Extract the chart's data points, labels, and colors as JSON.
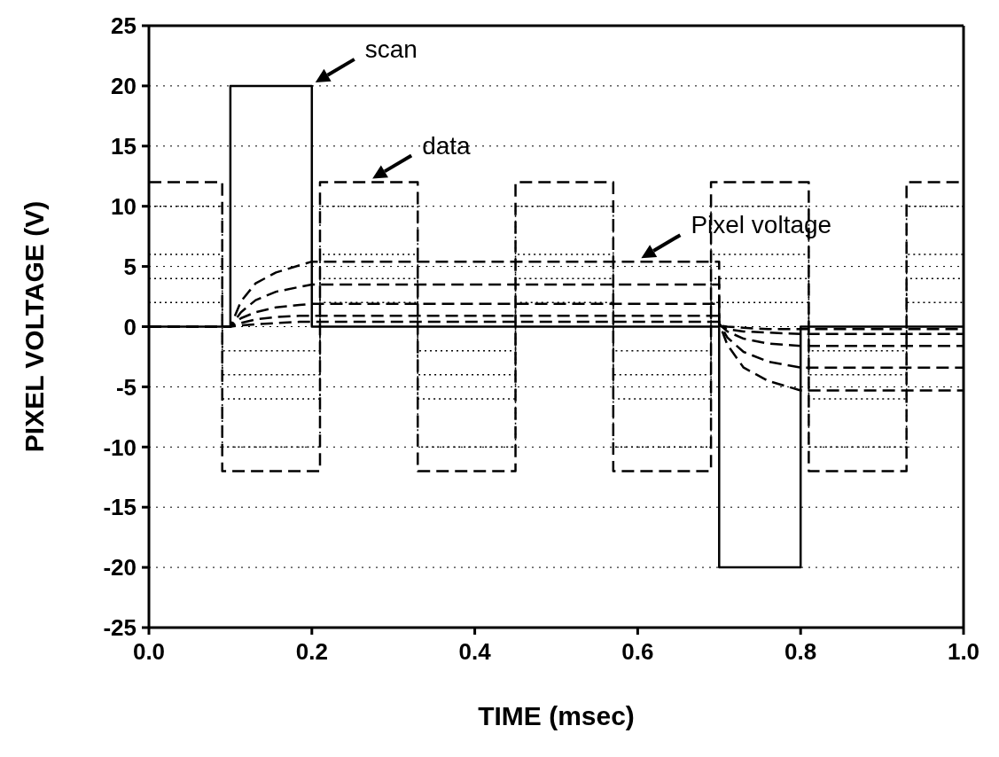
{
  "chart_data": {
    "type": "line",
    "xlabel": "TIME (msec)",
    "ylabel": "PIXEL VOLTAGE (V)",
    "xlim": [
      0,
      1
    ],
    "ylim": [
      -25,
      25
    ],
    "xticks": [
      {
        "value": 0,
        "label": "0.0"
      },
      {
        "value": 0.2,
        "label": "0.2"
      },
      {
        "value": 0.4,
        "label": "0.4"
      },
      {
        "value": 0.6,
        "label": "0.6"
      },
      {
        "value": 0.8,
        "label": "0.8"
      },
      {
        "value": 1,
        "label": "1.0"
      }
    ],
    "yticks": [
      -25,
      -20,
      -15,
      -10,
      -5,
      0,
      5,
      10,
      15,
      20,
      25
    ],
    "grid": "y",
    "marker": "none",
    "annotations": [
      {
        "text": "scan",
        "x": 0.2,
        "y": 20
      },
      {
        "text": "data",
        "x": 0.27,
        "y": 12
      },
      {
        "text": "Pixel voltage",
        "x": 0.6,
        "y": 5.4
      }
    ],
    "series": [
      {
        "color": "#000000",
        "line_style": "solid",
        "x": [
          0,
          0.1,
          0.1,
          0.2,
          0.2,
          0.7,
          0.7,
          0.8,
          0.8,
          1
        ],
        "values": [
          0,
          0,
          20,
          20,
          0,
          0,
          -20,
          -20,
          0,
          0
        ]
      },
      {
        "color": "#000000",
        "line_style": "dashed",
        "x": [
          0,
          0.09,
          0.09,
          0.21,
          0.21,
          0.33,
          0.33,
          0.45,
          0.45,
          0.57,
          0.57,
          0.69,
          0.69,
          0.81,
          0.81,
          0.93,
          0.93,
          1
        ],
        "values": [
          12,
          12,
          -12,
          -12,
          12,
          12,
          -12,
          -12,
          12,
          12,
          -12,
          -12,
          12,
          12,
          -12,
          -12,
          12,
          12
        ]
      },
      {
        "color": "#000000",
        "line_style": "dotted",
        "x": [
          0,
          0.09,
          0.09,
          0.21,
          0.21,
          0.33,
          0.33,
          0.45,
          0.45,
          0.57,
          0.57,
          0.69,
          0.69,
          0.81,
          0.81,
          0.93,
          0.93,
          1
        ],
        "values": [
          10,
          10,
          -10,
          -10,
          10,
          10,
          -10,
          -10,
          10,
          10,
          -10,
          -10,
          10,
          10,
          -10,
          -10,
          10,
          10
        ]
      },
      {
        "color": "#000000",
        "line_style": "dotted",
        "x": [
          0,
          0.09,
          0.09,
          0.21,
          0.21,
          0.33,
          0.33,
          0.45,
          0.45,
          0.57,
          0.57,
          0.69,
          0.69,
          0.81,
          0.81,
          0.93,
          0.93,
          1
        ],
        "values": [
          6,
          6,
          -6,
          -6,
          6,
          6,
          -6,
          -6,
          6,
          6,
          -6,
          -6,
          6,
          6,
          -6,
          -6,
          6,
          6
        ]
      },
      {
        "color": "#000000",
        "line_style": "dotted",
        "x": [
          0,
          0.09,
          0.09,
          0.21,
          0.21,
          0.33,
          0.33,
          0.45,
          0.45,
          0.57,
          0.57,
          0.69,
          0.69,
          0.81,
          0.81,
          0.93,
          0.93,
          1
        ],
        "values": [
          4,
          4,
          -4,
          -4,
          4,
          4,
          -4,
          -4,
          4,
          4,
          -4,
          -4,
          4,
          4,
          -4,
          -4,
          4,
          4
        ]
      },
      {
        "color": "#000000",
        "line_style": "dotted",
        "x": [
          0,
          0.09,
          0.09,
          0.21,
          0.21,
          0.33,
          0.33,
          0.45,
          0.45,
          0.57,
          0.57,
          0.69,
          0.69,
          0.81,
          0.81,
          0.93,
          0.93,
          1
        ],
        "values": [
          2,
          2,
          -2,
          -2,
          2,
          2,
          -2,
          -2,
          2,
          2,
          -2,
          -2,
          2,
          2,
          -2,
          -2,
          2,
          2
        ]
      },
      {
        "color": "#000000",
        "line_style": "dashed",
        "x": [
          0,
          0.1,
          0.113,
          0.131,
          0.156,
          0.185,
          0.2,
          0.7,
          0.7,
          0.71,
          0.73,
          0.76,
          0.8,
          1
        ],
        "values": [
          0,
          0,
          2.1,
          3.6,
          4.5,
          5.1,
          5.4,
          5.4,
          0.3,
          -1.5,
          -3.4,
          -4.5,
          -5.3,
          -5.3
        ]
      },
      {
        "color": "#000000",
        "line_style": "dashed",
        "x": [
          0,
          0.1,
          0.113,
          0.131,
          0.156,
          0.185,
          0.2,
          0.7,
          0.7,
          0.71,
          0.73,
          0.76,
          0.8,
          1
        ],
        "values": [
          0,
          0,
          1.2,
          2.2,
          2.9,
          3.3,
          3.5,
          3.5,
          0.3,
          -0.9,
          -2.1,
          -2.9,
          -3.4,
          -3.4
        ]
      },
      {
        "color": "#000000",
        "line_style": "dashed",
        "x": [
          0,
          0.1,
          0.113,
          0.131,
          0.156,
          0.185,
          0.2,
          0.7,
          0.7,
          0.71,
          0.73,
          0.76,
          0.8,
          1
        ],
        "values": [
          0,
          0,
          0.7,
          1.2,
          1.6,
          1.8,
          1.9,
          1.9,
          0.2,
          -0.4,
          -1,
          -1.4,
          -1.6,
          -1.6
        ]
      },
      {
        "color": "#000000",
        "line_style": "dashed",
        "x": [
          0,
          0.1,
          0.113,
          0.131,
          0.156,
          0.185,
          0.2,
          0.7,
          0.7,
          0.71,
          0.73,
          0.76,
          0.8,
          1
        ],
        "values": [
          0,
          0,
          0.3,
          0.6,
          0.8,
          0.9,
          0.9,
          0.9,
          0.1,
          -0.2,
          -0.4,
          -0.5,
          -0.6,
          -0.6
        ]
      },
      {
        "color": "#000000",
        "line_style": "dashed",
        "x": [
          0,
          0.1,
          0.113,
          0.131,
          0.156,
          0.185,
          0.2,
          0.7,
          0.7,
          0.71,
          0.73,
          0.76,
          0.8,
          1
        ],
        "values": [
          0,
          0,
          0.1,
          0.2,
          0.3,
          0.4,
          0.4,
          0.4,
          0.1,
          0,
          -0.1,
          -0.2,
          -0.2,
          -0.2
        ]
      }
    ]
  }
}
